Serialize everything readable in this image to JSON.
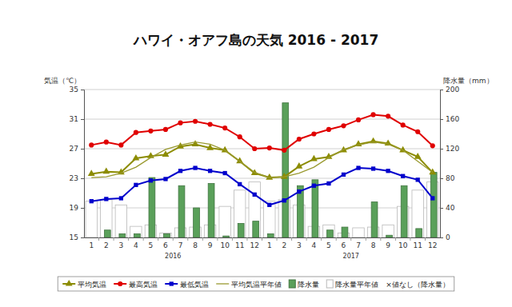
{
  "chart_data": {
    "type": "combo",
    "title": "ハワイ・オアフ島の天気 2016 - 2017",
    "y_label": "気温（℃）",
    "y2_label": "降水量（mm）",
    "categories": [
      "1",
      "2",
      "3",
      "4",
      "5",
      "6",
      "7",
      "8",
      "9",
      "10",
      "11",
      "12",
      "1",
      "2",
      "3",
      "4",
      "5",
      "6",
      "7",
      "8",
      "9",
      "10",
      "11",
      "12"
    ],
    "x_group_labels": [
      "2016",
      "2017"
    ],
    "ylim": [
      15,
      35
    ],
    "yticks": [
      15,
      19,
      23,
      27,
      31,
      35
    ],
    "y2lim": [
      0,
      200
    ],
    "y2ticks": [
      0,
      40,
      80,
      120,
      160,
      200
    ],
    "grid": true,
    "legend": "bottom",
    "series": [
      {
        "name": "平均気温",
        "type": "line",
        "color": "#8c8c00",
        "marker": "triangle",
        "line_style": "solid",
        "values": [
          23.6,
          23.9,
          23.8,
          25.7,
          26.0,
          26.2,
          27.3,
          27.6,
          27.1,
          26.8,
          25.3,
          23.7,
          23.1,
          23.2,
          24.6,
          25.6,
          25.9,
          26.8,
          27.6,
          28.0,
          27.7,
          26.8,
          25.9,
          23.8
        ]
      },
      {
        "name": "最高気温",
        "type": "line",
        "color": "#e00000",
        "marker": "circle",
        "line_style": "solid",
        "values": [
          27.5,
          27.9,
          27.5,
          29.2,
          29.4,
          29.6,
          30.5,
          30.7,
          30.3,
          29.8,
          28.6,
          27.0,
          27.1,
          26.8,
          28.3,
          29.0,
          29.6,
          30.1,
          30.9,
          31.6,
          31.4,
          30.2,
          29.3,
          27.4
        ]
      },
      {
        "name": "最低気温",
        "type": "line",
        "color": "#0000cc",
        "marker": "square",
        "line_style": "solid",
        "values": [
          19.9,
          20.2,
          20.3,
          22.1,
          22.7,
          22.9,
          24.0,
          24.4,
          24.0,
          23.7,
          22.2,
          20.8,
          19.4,
          20.0,
          21.2,
          22.0,
          22.3,
          23.5,
          24.4,
          24.3,
          24.0,
          23.3,
          22.8,
          20.3
        ]
      },
      {
        "name": "平均気温平年値",
        "type": "line",
        "color": "#9a9a30",
        "marker": "none",
        "line_style": "solid",
        "values": [
          23.1,
          23.2,
          23.7,
          24.5,
          25.8,
          26.9,
          27.5,
          27.9,
          27.6,
          26.8,
          25.3,
          23.8,
          23.1,
          23.2,
          23.7,
          24.5,
          25.8,
          26.9,
          27.5,
          27.9,
          27.6,
          26.8,
          25.3,
          23.8
        ]
      },
      {
        "name": "降水量",
        "type": "bar",
        "axis": "y2",
        "color": "#5aa05a",
        "values": [
          0,
          10,
          5,
          5,
          81,
          5,
          70,
          40,
          73,
          2,
          19,
          22,
          5,
          182,
          70,
          78,
          10,
          14,
          0,
          48,
          3,
          70,
          12,
          88
        ]
      },
      {
        "name": "降水量平年値",
        "type": "bar",
        "axis": "y2",
        "color": "#ffffff",
        "values": [
          49,
          51,
          44,
          15,
          17,
          6,
          13,
          14,
          17,
          42,
          64,
          75,
          49,
          51,
          44,
          15,
          17,
          6,
          13,
          14,
          17,
          42,
          64,
          75
        ]
      }
    ],
    "annotations": [
      "×値なし（降水量）"
    ]
  }
}
